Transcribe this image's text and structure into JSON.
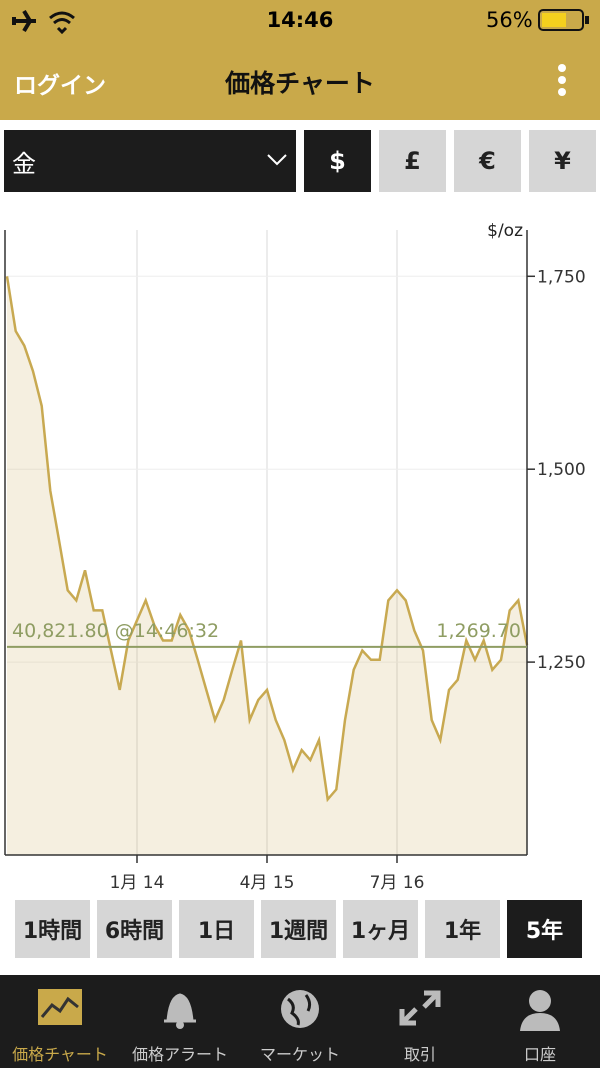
{
  "status_bar": {
    "time": "14:46",
    "battery": "56%"
  },
  "nav": {
    "back": "ログイン",
    "title": "価格チャート"
  },
  "selector": {
    "metal": "金",
    "currencies": [
      "$",
      "£",
      "€",
      "¥"
    ],
    "active": 0
  },
  "chart_data": {
    "type": "line",
    "y_unit": "$/oz",
    "x": [
      "2012-10",
      "2012-11",
      "2012-12",
      "2013-01",
      "2013-02",
      "2013-03",
      "2013-04",
      "2013-05",
      "2013-06",
      "2013-07",
      "2013-08",
      "2013-09",
      "2013-10",
      "2013-11",
      "2013-12",
      "2014-01",
      "2014-02",
      "2014-03",
      "2014-04",
      "2014-05",
      "2014-06",
      "2014-07",
      "2014-08",
      "2014-09",
      "2014-10",
      "2014-11",
      "2014-12",
      "2015-01",
      "2015-02",
      "2015-03",
      "2015-04",
      "2015-05",
      "2015-06",
      "2015-07",
      "2015-08",
      "2015-09",
      "2015-10",
      "2015-11",
      "2015-12",
      "2016-01",
      "2016-02",
      "2016-03",
      "2016-04",
      "2016-05",
      "2016-06",
      "2016-07",
      "2016-08",
      "2016-09",
      "2016-10",
      "2016-11",
      "2016-12",
      "2017-01",
      "2017-02",
      "2017-03",
      "2017-04",
      "2017-05",
      "2017-06",
      "2017-07",
      "2017-08",
      "2017-09",
      "2017-10"
    ],
    "values": [
      1750,
      1679,
      1660,
      1627,
      1582,
      1472,
      1408,
      1343,
      1330,
      1369,
      1317,
      1317,
      1265,
      1214,
      1278,
      1304,
      1330,
      1298,
      1278,
      1278,
      1311,
      1291,
      1253,
      1214,
      1175,
      1201,
      1240,
      1278,
      1175,
      1201,
      1214,
      1175,
      1149,
      1110,
      1136,
      1123,
      1149,
      1072,
      1085,
      1175,
      1240,
      1265,
      1253,
      1253,
      1330,
      1343,
      1330,
      1291,
      1265,
      1175,
      1149,
      1214,
      1227,
      1278,
      1253,
      1278,
      1240,
      1253,
      1317,
      1330,
      1272
    ],
    "color": "#c8a951",
    "xlim": [
      "2012-10",
      "2017-10"
    ],
    "xticks": [
      {
        "value": "2014-01",
        "label": "1月 14"
      },
      {
        "value": "2015-04",
        "label": "4月 15"
      },
      {
        "value": "2016-07",
        "label": "7月 16"
      }
    ],
    "ylim": [
      1000,
      1810
    ],
    "yticks": [
      {
        "value": 1250,
        "label": "1,250"
      },
      {
        "value": 1500,
        "label": "1,500"
      },
      {
        "value": 1750,
        "label": "1,750"
      }
    ],
    "grid": true,
    "current_value": 1269.7,
    "current_label": "1,269.70",
    "annotation": "40,821.80 @14:46:32"
  },
  "ranges": {
    "items": [
      "1時間",
      "6時間",
      "1日",
      "1週間",
      "1ヶ月",
      "1年",
      "5年"
    ],
    "active": 6
  },
  "tabs": {
    "items": [
      "価格チャート",
      "価格アラート",
      "マーケット",
      "取引",
      "口座"
    ],
    "active": 0
  }
}
